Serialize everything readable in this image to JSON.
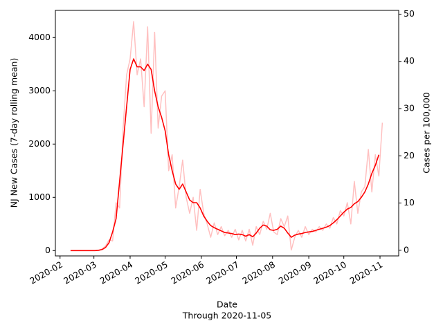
{
  "chart_data": {
    "type": "line",
    "x_label": "Date",
    "x_note": "Through 2020-11-05",
    "y_label": "NJ New Cases (7-day rolling mean)",
    "y2_label": "Cases per 100,000",
    "x": [
      "2020-02-10",
      "2020-02-13",
      "2020-02-16",
      "2020-02-19",
      "2020-02-22",
      "2020-02-25",
      "2020-02-28",
      "2020-03-02",
      "2020-03-05",
      "2020-03-08",
      "2020-03-11",
      "2020-03-14",
      "2020-03-17",
      "2020-03-20",
      "2020-03-23",
      "2020-03-26",
      "2020-03-29",
      "2020-04-01",
      "2020-04-04",
      "2020-04-07",
      "2020-04-10",
      "2020-04-13",
      "2020-04-16",
      "2020-04-19",
      "2020-04-22",
      "2020-04-25",
      "2020-04-28",
      "2020-05-01",
      "2020-05-04",
      "2020-05-07",
      "2020-05-10",
      "2020-05-13",
      "2020-05-16",
      "2020-05-19",
      "2020-05-22",
      "2020-05-25",
      "2020-05-28",
      "2020-05-31",
      "2020-06-03",
      "2020-06-06",
      "2020-06-09",
      "2020-06-12",
      "2020-06-15",
      "2020-06-18",
      "2020-06-21",
      "2020-06-24",
      "2020-06-27",
      "2020-06-30",
      "2020-07-03",
      "2020-07-06",
      "2020-07-09",
      "2020-07-12",
      "2020-07-15",
      "2020-07-18",
      "2020-07-21",
      "2020-07-24",
      "2020-07-27",
      "2020-07-30",
      "2020-08-02",
      "2020-08-05",
      "2020-08-08",
      "2020-08-11",
      "2020-08-14",
      "2020-08-17",
      "2020-08-20",
      "2020-08-23",
      "2020-08-26",
      "2020-08-29",
      "2020-09-01",
      "2020-09-04",
      "2020-09-07",
      "2020-09-10",
      "2020-09-13",
      "2020-09-16",
      "2020-09-19",
      "2020-09-22",
      "2020-09-25",
      "2020-09-28",
      "2020-10-01",
      "2020-10-04",
      "2020-10-07",
      "2020-10-10",
      "2020-10-13",
      "2020-10-16",
      "2020-10-19",
      "2020-10-22",
      "2020-10-25",
      "2020-10-28",
      "2020-10-31",
      "2020-11-03"
    ],
    "series": [
      {
        "color": "#ffc0c0",
        "width": 1.5,
        "values": [
          0,
          0,
          0,
          0,
          0,
          0,
          0,
          0,
          10,
          30,
          90,
          200,
          180,
          900,
          800,
          2300,
          3300,
          3600,
          4300,
          3300,
          3600,
          2700,
          4200,
          2200,
          4100,
          2300,
          2900,
          3000,
          1500,
          1800,
          800,
          1200,
          1700,
          1000,
          700,
          1000,
          380,
          1150,
          700,
          500,
          250,
          520,
          300,
          450,
          280,
          380,
          250,
          400,
          200,
          380,
          180,
          400,
          100,
          450,
          300,
          550,
          400,
          700,
          350,
          300,
          600,
          450,
          650,
          10,
          250,
          380,
          250,
          450,
          300,
          400,
          350,
          450,
          380,
          500,
          420,
          620,
          500,
          750,
          650,
          900,
          500,
          1300,
          700,
          1100,
          1200,
          1900,
          1100,
          1800,
          1400,
          2400
        ]
      },
      {
        "color": "#ff0000",
        "width": 1.6,
        "values": [
          0,
          0,
          0,
          0,
          0,
          0,
          0,
          0,
          5,
          20,
          60,
          150,
          350,
          600,
          1300,
          2000,
          2700,
          3400,
          3600,
          3450,
          3450,
          3380,
          3500,
          3400,
          3000,
          2700,
          2500,
          2250,
          1800,
          1500,
          1250,
          1150,
          1250,
          1100,
          950,
          900,
          900,
          800,
          650,
          550,
          470,
          430,
          400,
          370,
          340,
          330,
          320,
          300,
          310,
          300,
          270,
          300,
          260,
          330,
          420,
          480,
          460,
          390,
          380,
          400,
          460,
          420,
          330,
          250,
          290,
          310,
          320,
          340,
          350,
          360,
          380,
          400,
          420,
          440,
          470,
          520,
          580,
          650,
          720,
          780,
          810,
          880,
          920,
          1000,
          1100,
          1250,
          1450,
          1600,
          1800,
          null
        ]
      }
    ],
    "xlim": [
      "2020-01-28",
      "2020-11-17"
    ],
    "xticks": [
      {
        "value": "2020-02-01",
        "label": "2020-02"
      },
      {
        "value": "2020-03-01",
        "label": "2020-03"
      },
      {
        "value": "2020-04-01",
        "label": "2020-04"
      },
      {
        "value": "2020-05-01",
        "label": "2020-05"
      },
      {
        "value": "2020-06-01",
        "label": "2020-06"
      },
      {
        "value": "2020-07-01",
        "label": "2020-07"
      },
      {
        "value": "2020-08-01",
        "label": "2020-08"
      },
      {
        "value": "2020-09-01",
        "label": "2020-09"
      },
      {
        "value": "2020-10-01",
        "label": "2020-10"
      },
      {
        "value": "2020-11-01",
        "label": "2020-11"
      }
    ],
    "ylim": [
      -100,
      4510
    ],
    "yticks": [
      0,
      1000,
      2000,
      3000,
      4000
    ],
    "y2lim": [
      -1.2,
      50.8
    ],
    "y2ticks": [
      0,
      10,
      20,
      30,
      40,
      50
    ]
  }
}
